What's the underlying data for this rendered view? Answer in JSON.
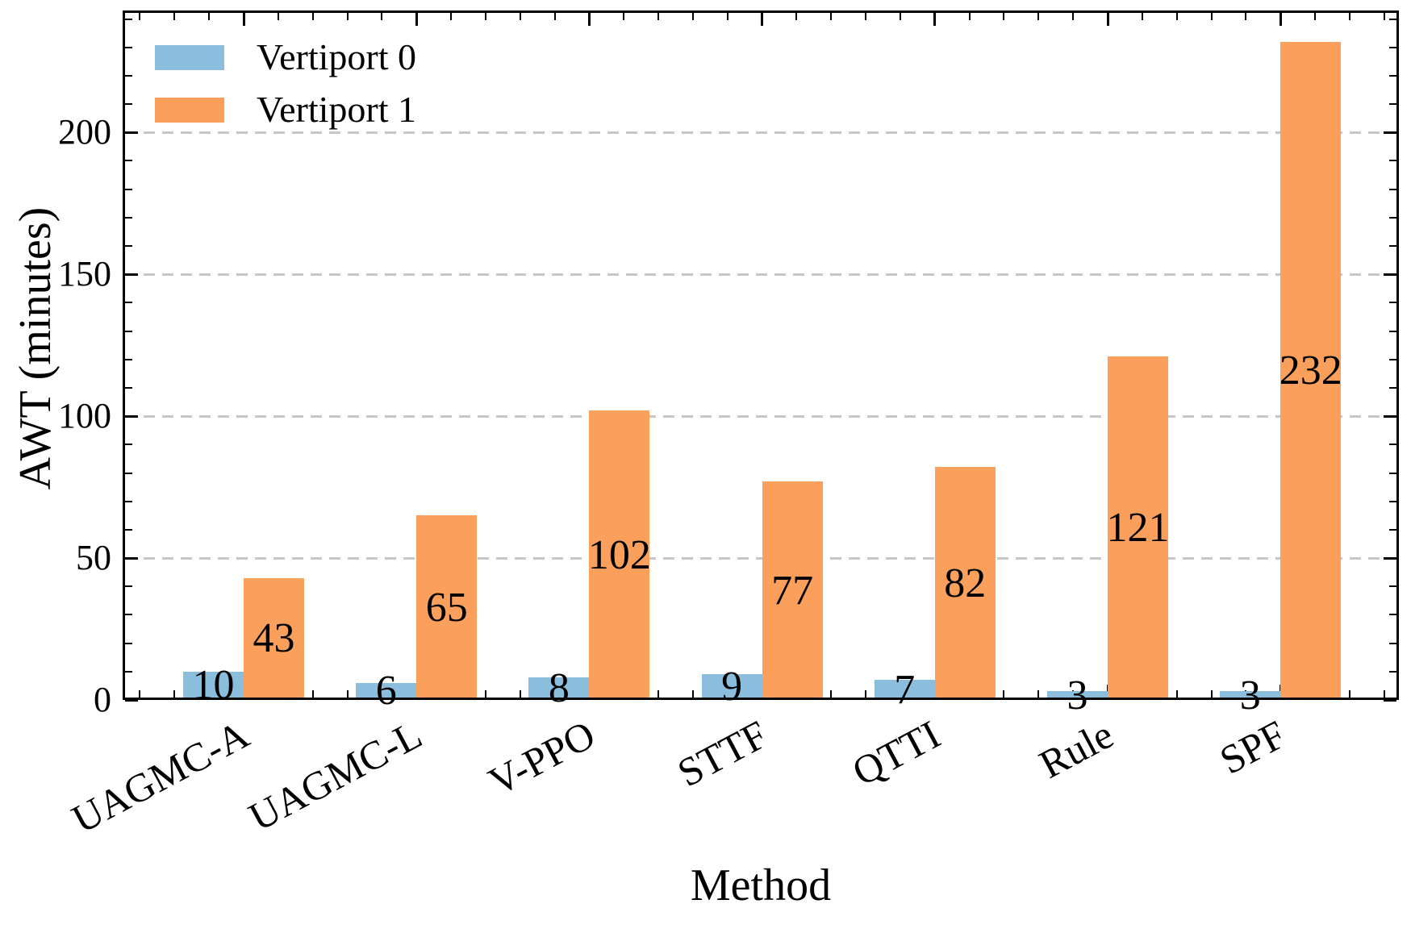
{
  "chart_data": {
    "type": "bar",
    "title": "",
    "xlabel": "Method",
    "ylabel": "AWT (minutes)",
    "categories": [
      "UAGMC-A",
      "UAGMC-L",
      "V-PPO",
      "STTF",
      "QTTI",
      "Rule",
      "SPF"
    ],
    "series": [
      {
        "name": "Vertiport 0",
        "color": "#8BBEDC",
        "values": [
          10,
          6,
          8,
          9,
          7,
          3,
          3
        ]
      },
      {
        "name": "Vertiport 1",
        "color": "#FAA05C",
        "values": [
          43,
          65,
          102,
          77,
          82,
          121,
          232
        ]
      }
    ],
    "bar_labels": {
      "Vertiport 0": [
        10,
        6,
        8,
        9,
        7,
        3,
        3
      ],
      "Vertiport 1": [
        43,
        65,
        102,
        77,
        82,
        121,
        232
      ],
      "placement": "center"
    },
    "ylim": [
      0,
      243
    ],
    "yticks": [
      0,
      50,
      100,
      150,
      200
    ],
    "y_minor_step": 10,
    "grid": "horizontal dashed lines at major y ticks",
    "gridline_color": "#c7c7c7",
    "tick_direction": "in",
    "legend_position": "upper left",
    "legend_frame": false,
    "text_color": "#000000",
    "xtick_label_rotation_deg": 28
  }
}
